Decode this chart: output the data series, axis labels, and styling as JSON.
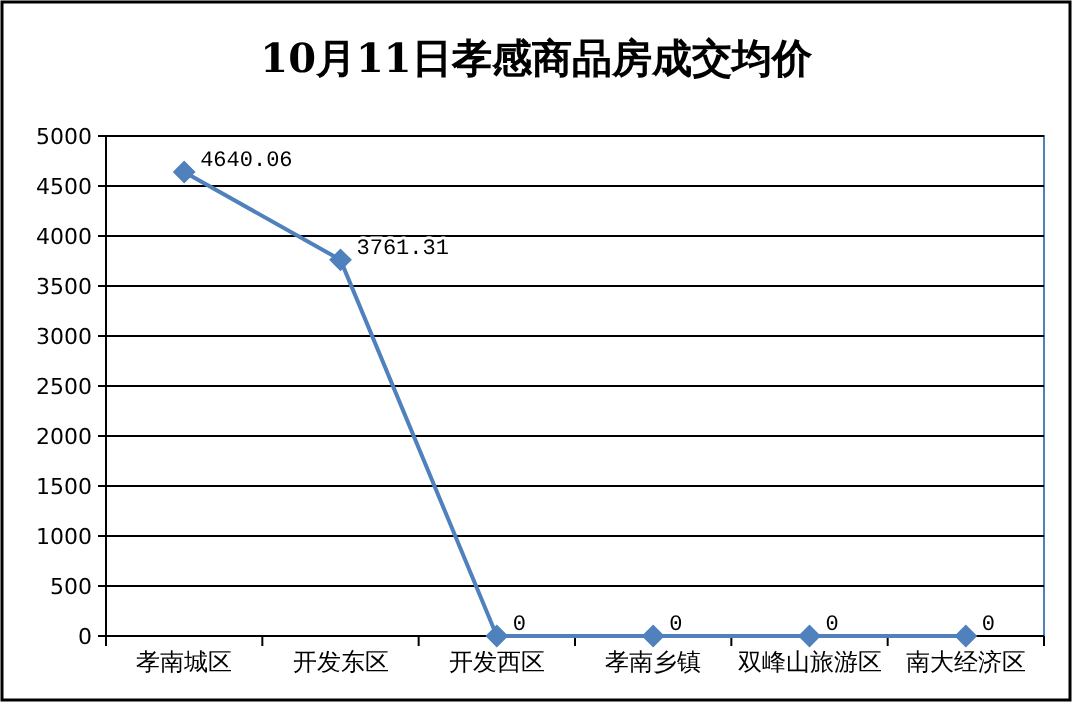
{
  "chart_data": {
    "type": "line",
    "title": "10月11日孝感商品房成交均价",
    "categories": [
      "孝南城区",
      "开发东区",
      "开发西区",
      "孝南乡镇",
      "双峰山旅游区",
      "南大经济区"
    ],
    "series": [
      {
        "color": "#4f81bd",
        "values": [
          4640.06,
          3761.31,
          0,
          0,
          0,
          0
        ]
      }
    ],
    "ylim": [
      0,
      5000
    ],
    "yticks": [
      0,
      500,
      1000,
      1500,
      2000,
      2500,
      3000,
      3500,
      4000,
      4500,
      5000
    ],
    "grid": "y",
    "marker": "diamond",
    "line_style": "solid",
    "data_labels": true
  }
}
